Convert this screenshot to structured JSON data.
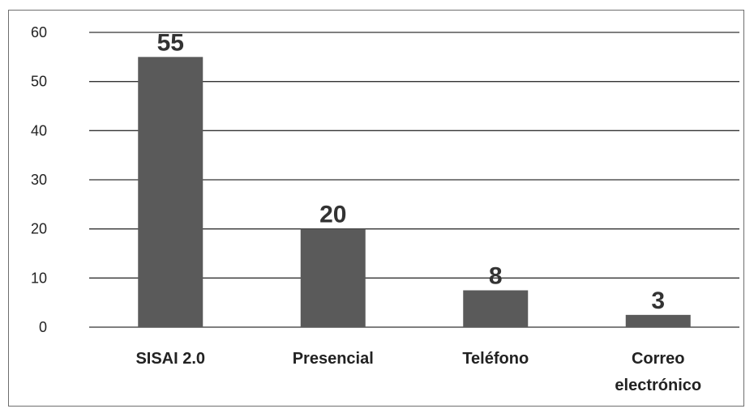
{
  "chart_data": {
    "type": "bar",
    "title": "",
    "xlabel": "",
    "ylabel": "",
    "categories": [
      [
        "SISAI 2.0"
      ],
      [
        "Presencial"
      ],
      [
        "Teléfono"
      ],
      [
        "Correo",
        "electrónico"
      ]
    ],
    "values": [
      55,
      20,
      7.5,
      2.5
    ],
    "data_labels": [
      "55",
      "20",
      "8",
      "3"
    ],
    "ylim": [
      0,
      60
    ],
    "yticks": [
      0,
      10,
      20,
      30,
      40,
      50,
      60
    ],
    "grid": true,
    "legend": "none",
    "colors": {
      "bar": "#5a5a5a",
      "grid": "#333333",
      "axis_text": "#222222"
    }
  }
}
